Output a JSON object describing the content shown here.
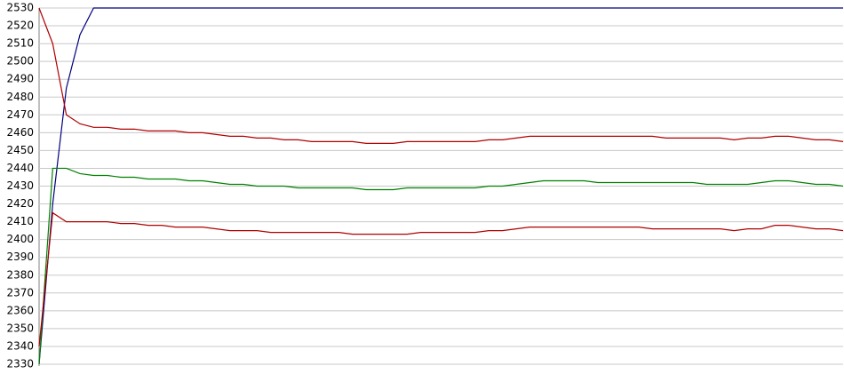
{
  "chart_data": {
    "type": "line",
    "categories": [
      null,
      null,
      null,
      null,
      null,
      null,
      null,
      null,
      null,
      null,
      null,
      null,
      null,
      null,
      null,
      null,
      null,
      null,
      null,
      null,
      null,
      null,
      null,
      null,
      null,
      null,
      null,
      null,
      null,
      null,
      null,
      null,
      null,
      null,
      null,
      null,
      null,
      null,
      null,
      null,
      null,
      null,
      null,
      null,
      null,
      null,
      null,
      null,
      null,
      null,
      null,
      null,
      null,
      null,
      null,
      null,
      null,
      null,
      null,
      null
    ],
    "series": [
      {
        "color": "#000080",
        "values": [
          2330,
          2420,
          2485,
          2515,
          2530,
          2530,
          2530,
          2530,
          2530,
          2530,
          2530,
          2530,
          2530,
          2530,
          2530,
          2530,
          2530,
          2530,
          2530,
          2530,
          2530,
          2530,
          2530,
          2530,
          2530,
          2530,
          2530,
          2530,
          2530,
          2530,
          2530,
          2530,
          2530,
          2530,
          2530,
          2530,
          2530,
          2530,
          2530,
          2530,
          2530,
          2530,
          2530,
          2530,
          2530,
          2530,
          2530,
          2530,
          2530,
          2530,
          2530,
          2530,
          2530,
          2530,
          2530,
          2530,
          2530,
          2530,
          2530,
          2530
        ]
      },
      {
        "color": "#b00000",
        "values": [
          2530,
          2510,
          2470,
          2465,
          2463,
          2463,
          2462,
          2462,
          2461,
          2461,
          2461,
          2460,
          2460,
          2459,
          2458,
          2458,
          2457,
          2457,
          2456,
          2456,
          2455,
          2455,
          2455,
          2455,
          2454,
          2454,
          2454,
          2455,
          2455,
          2455,
          2455,
          2455,
          2455,
          2456,
          2456,
          2457,
          2458,
          2458,
          2458,
          2458,
          2458,
          2458,
          2458,
          2458,
          2458,
          2458,
          2457,
          2457,
          2457,
          2457,
          2457,
          2456,
          2457,
          2457,
          2458,
          2458,
          2457,
          2456,
          2456,
          2455
        ]
      },
      {
        "color": "#008000",
        "values": [
          2330,
          2440,
          2440,
          2437,
          2436,
          2436,
          2435,
          2435,
          2434,
          2434,
          2434,
          2433,
          2433,
          2432,
          2431,
          2431,
          2430,
          2430,
          2430,
          2429,
          2429,
          2429,
          2429,
          2429,
          2428,
          2428,
          2428,
          2429,
          2429,
          2429,
          2429,
          2429,
          2429,
          2430,
          2430,
          2431,
          2432,
          2433,
          2433,
          2433,
          2433,
          2432,
          2432,
          2432,
          2432,
          2432,
          2432,
          2432,
          2432,
          2431,
          2431,
          2431,
          2431,
          2432,
          2433,
          2433,
          2432,
          2431,
          2431,
          2430
        ]
      },
      {
        "color": "#b00000",
        "values": [
          2340,
          2415,
          2410,
          2410,
          2410,
          2410,
          2409,
          2409,
          2408,
          2408,
          2407,
          2407,
          2407,
          2406,
          2405,
          2405,
          2405,
          2404,
          2404,
          2404,
          2404,
          2404,
          2404,
          2403,
          2403,
          2403,
          2403,
          2403,
          2404,
          2404,
          2404,
          2404,
          2404,
          2405,
          2405,
          2406,
          2407,
          2407,
          2407,
          2407,
          2407,
          2407,
          2407,
          2407,
          2407,
          2406,
          2406,
          2406,
          2406,
          2406,
          2406,
          2405,
          2406,
          2406,
          2408,
          2408,
          2407,
          2406,
          2406,
          2405
        ]
      }
    ],
    "ylim": [
      2330,
      2530
    ],
    "yticks": [
      2330,
      2340,
      2350,
      2360,
      2370,
      2380,
      2390,
      2400,
      2410,
      2420,
      2430,
      2440,
      2450,
      2460,
      2470,
      2480,
      2490,
      2500,
      2510,
      2520,
      2530
    ],
    "grid": true
  }
}
